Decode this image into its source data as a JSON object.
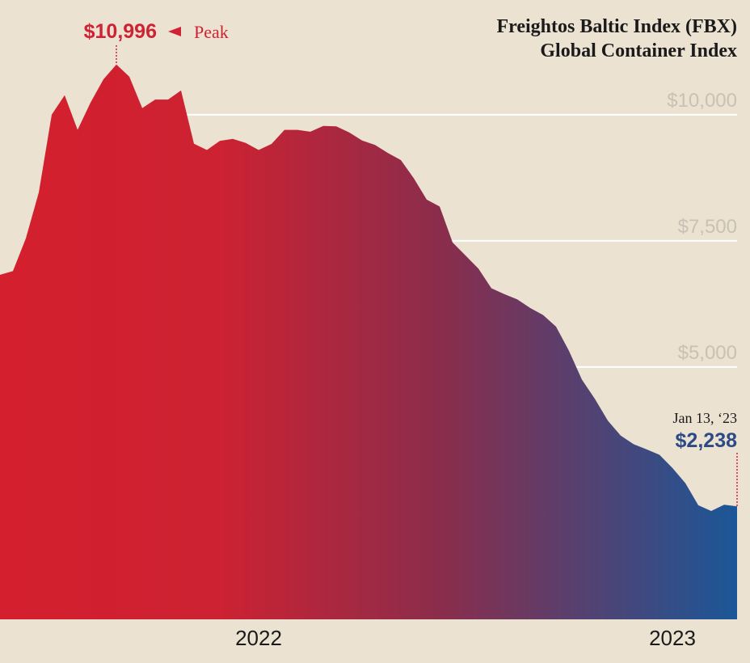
{
  "chart_data": {
    "type": "area",
    "title": "Freightos Baltic Index (FBX)",
    "subtitle": "Global Container Index",
    "categories": [
      null,
      null,
      null,
      null,
      null,
      null,
      null,
      null,
      null,
      null,
      null,
      null,
      null,
      null,
      null,
      null,
      null,
      null,
      null,
      null,
      "2022",
      null,
      null,
      null,
      null,
      null,
      null,
      null,
      null,
      null,
      null,
      null,
      null,
      null,
      null,
      null,
      null,
      null,
      null,
      null,
      null,
      null,
      null,
      null,
      null,
      null,
      null,
      null,
      null,
      null,
      null,
      null,
      "2023",
      null,
      null,
      null,
      null,
      null
    ],
    "values": [
      6827,
      6900,
      7550,
      8460,
      10000,
      10385,
      9700,
      10240,
      10700,
      10996,
      10753,
      10130,
      10300,
      10300,
      10480,
      9423,
      9300,
      9480,
      9520,
      9440,
      9300,
      9420,
      9700,
      9700,
      9663,
      9776,
      9770,
      9650,
      9490,
      9400,
      9240,
      9100,
      8740,
      8317,
      8180,
      7468,
      7210,
      6950,
      6560,
      6445,
      6340,
      6170,
      6030,
      5800,
      5320,
      4750,
      4370,
      3940,
      3640,
      3470,
      3370,
      3260,
      3000,
      2700,
      2260,
      2147,
      2270,
      2238
    ],
    "value_labels": [
      null,
      null,
      null,
      null,
      null,
      null,
      null,
      null,
      null,
      "$10,996",
      null,
      null,
      null,
      null,
      null,
      null,
      null,
      null,
      null,
      null,
      null,
      null,
      null,
      null,
      null,
      null,
      null,
      null,
      null,
      null,
      null,
      null,
      null,
      null,
      null,
      null,
      null,
      null,
      null,
      null,
      null,
      null,
      null,
      null,
      null,
      null,
      null,
      null,
      null,
      null,
      null,
      null,
      null,
      null,
      null,
      null,
      null,
      "$2,238"
    ],
    "annotations": {
      "peak": "Peak",
      "last_date": "Jan 13, ‘23"
    },
    "ylim": [
      0,
      12000
    ],
    "yticks": [
      {
        "value": 5000,
        "label": "$5,000"
      },
      {
        "value": 7500,
        "label": "$7,500"
      },
      {
        "value": 10000,
        "label": "$10,000"
      }
    ],
    "grid": true,
    "gradient": [
      "#d41f2e",
      "#cc2232",
      "#8a2d4c",
      "#1b5798"
    ],
    "peak_color": "#cf2233",
    "last_color": "#2c4a86"
  }
}
